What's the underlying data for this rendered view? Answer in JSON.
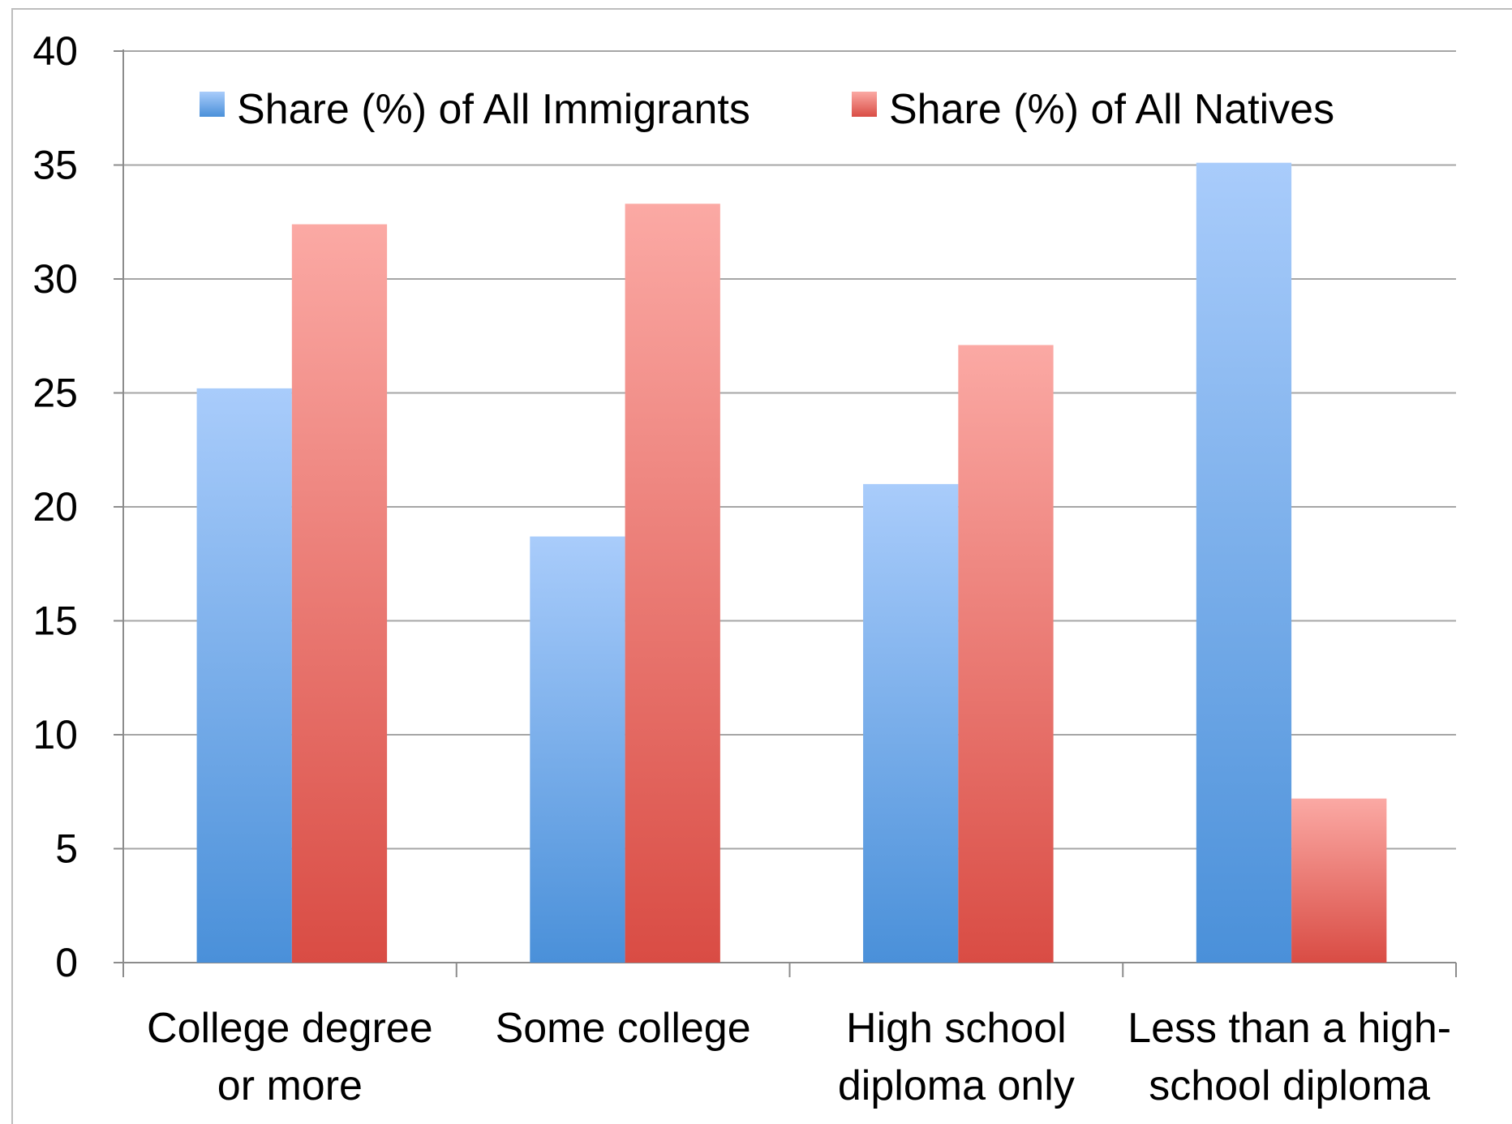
{
  "chart_data": {
    "type": "bar",
    "categories": [
      [
        "College degree",
        "or more"
      ],
      [
        "Some college"
      ],
      [
        "High school",
        "diploma only"
      ],
      [
        "Less than a high-",
        "school diploma"
      ]
    ],
    "series": [
      {
        "name": "Share (%) of All Immigrants",
        "values": [
          25.2,
          18.7,
          21.0,
          35.1
        ],
        "color": "#5b9bdf"
      },
      {
        "name": "Share (%) of All Natives",
        "values": [
          32.4,
          33.3,
          27.1,
          7.2
        ],
        "color": "#e06a60"
      }
    ],
    "yticks": [
      "0",
      "5",
      "10",
      "15",
      "20",
      "25",
      "30",
      "35",
      "40"
    ],
    "ylim": [
      0,
      40
    ],
    "grid": true,
    "legend_position": "top"
  }
}
